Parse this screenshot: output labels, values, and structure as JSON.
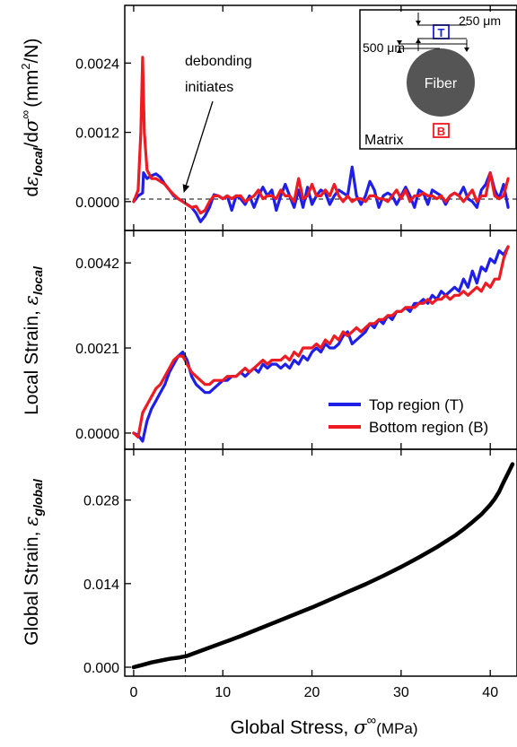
{
  "colors": {
    "top": "#1f1fe8",
    "bottom": "#ee1b22",
    "global": "#000000"
  },
  "x_axis": {
    "label_prefix": "Global Stress, ",
    "label_symbol": "σ",
    "label_superscript": "∞",
    "label_unit": "(MPa)",
    "range": [
      -1,
      43
    ],
    "ticks": [
      "0",
      "10",
      "20",
      "30",
      "40"
    ]
  },
  "annotation": {
    "line1": "debonding",
    "line2": "initiates",
    "onset_stress": 5.8
  },
  "inset": {
    "fiber_label": "Fiber",
    "matrix_label": "Matrix",
    "top_marker": "T",
    "bottom_marker": "B",
    "dim_top": "250 μm",
    "dim_left": "500 μm"
  },
  "legend": {
    "top": "Top region (T)",
    "bottom": "Bottom region (B)"
  },
  "chart_data": [
    {
      "type": "line",
      "ylabel_d": "d",
      "ylabel_eps": "ε",
      "ylabel_sub": "local",
      "ylabel_mid": "/d",
      "ylabel_sigma": "σ",
      "ylabel_inf": "∞",
      "ylabel_unit_open": "(mm",
      "ylabel_unit_sup": "2",
      "ylabel_unit_close": "/N)",
      "ylim": [
        -0.0005,
        0.0034
      ],
      "ytick_values": [
        0,
        0.0012,
        0.0024
      ],
      "ytick_labels": [
        "0.0000",
        "0.0012",
        "0.0024"
      ],
      "reference_line": 0,
      "series": [
        {
          "name": "Top region (T)",
          "color": "#1f1fe8",
          "x": [
            0,
            0.5,
            1.0,
            1.1,
            1.5,
            2.0,
            2.5,
            3.0,
            3.5,
            4.0,
            4.5,
            5.0,
            5.5,
            6.0,
            6.5,
            7.0,
            7.5,
            8.0,
            8.5,
            9.0,
            9.5,
            10,
            10.5,
            11,
            11.5,
            12,
            12.5,
            13,
            13.5,
            14,
            14.5,
            15,
            15.5,
            16,
            16.5,
            17,
            17.5,
            18,
            18.5,
            19,
            19.5,
            20,
            20.5,
            21,
            21.5,
            22,
            22.5,
            23,
            23.5,
            24,
            24.5,
            25,
            25.5,
            26,
            26.5,
            27,
            27.5,
            28,
            28.5,
            29,
            29.5,
            30,
            30.5,
            31,
            31.5,
            32,
            32.5,
            33,
            33.5,
            34,
            34.5,
            35,
            35.5,
            36,
            36.5,
            37,
            37.5,
            38,
            38.5,
            39,
            39.5,
            40,
            40.5,
            41,
            41.5,
            42
          ],
          "y": [
            0,
            0.0001,
            0.00015,
            0.0005,
            0.0004,
            0.00045,
            0.00048,
            0.00042,
            0.0003,
            0.0002,
            0.0001,
            5e-05,
            0,
            -5e-05,
            -0.0001,
            -0.0002,
            -0.00035,
            -0.00025,
            -0.0001,
            0.00012,
            0.0001,
            5e-05,
            0.0001,
            -0.00015,
            0.0001,
            5e-05,
            -5e-05,
            0.0001,
            -0.0001,
            0.0001,
            0.00025,
            0.0001,
            0.0002,
            -0.00015,
            0.0001,
            0.0003,
            0.0001,
            -0.0001,
            0.0002,
            -0.0001,
            0.00025,
            -5e-05,
            0.0001,
            0.0002,
            0.00015,
            -5e-05,
            0.0001,
            0.0002,
            0.00015,
            0.0001,
            0.0006,
            0.0001,
            -5e-05,
            0.0001,
            0.00035,
            0.0002,
            -0.0001,
            0.0001,
            0.00015,
            0.0001,
            -5e-05,
            0.0001,
            0.00025,
            0.0001,
            -0.0001,
            0.0002,
            0.00015,
            -5e-05,
            0.0002,
            0.00015,
            0.0001,
            -5e-05,
            0.0001,
            0.00015,
            0.0001,
            0.00025,
            5e-05,
            0,
            -0.0001,
            0.0002,
            0.0003,
            0.0005,
            0.0002,
            5e-05,
            0.0003,
            -0.0001
          ]
        },
        {
          "name": "Bottom region (B)",
          "color": "#ee1b22",
          "x": [
            0,
            0.5,
            0.8,
            1.0,
            1.2,
            1.5,
            2.0,
            2.5,
            3.0,
            3.5,
            4.0,
            4.5,
            5.0,
            5.5,
            6.0,
            6.5,
            7.0,
            7.5,
            8.0,
            8.5,
            9.0,
            9.5,
            10,
            10.5,
            11,
            11.5,
            12,
            12.5,
            13,
            13.5,
            14,
            14.5,
            15,
            15.5,
            16,
            16.5,
            17,
            17.5,
            18,
            18.5,
            19,
            19.5,
            20,
            20.5,
            21,
            21.5,
            22,
            22.5,
            23,
            23.5,
            24,
            24.5,
            25,
            25.5,
            26,
            26.5,
            27,
            27.5,
            28,
            28.5,
            29,
            29.5,
            30,
            30.5,
            31,
            31.5,
            32,
            32.5,
            33,
            33.5,
            34,
            34.5,
            35,
            35.5,
            36,
            36.5,
            37,
            37.5,
            38,
            38.5,
            39,
            39.5,
            40,
            40.5,
            41,
            41.5,
            42
          ],
          "y": [
            0,
            0.0002,
            0.0012,
            0.0025,
            0.0012,
            0.00055,
            0.0004,
            0.0004,
            0.00035,
            0.0003,
            0.0002,
            0.00012,
            5e-05,
            0,
            -5e-05,
            -0.0001,
            -8e-05,
            -0.0002,
            -0.00015,
            0,
            0.0001,
            0.0001,
            5e-05,
            0.0001,
            5e-05,
            0.0001,
            0.0001,
            0,
            5e-05,
            0.0001,
            0.0002,
            5e-05,
            0.0001,
            0.0001,
            5e-05,
            0.0002,
            0.0001,
            0.0001,
            0,
            0.0004,
            5e-05,
            0.0001,
            0.0003,
            0.0001,
            0.0001,
            0.0002,
            0.0001,
            0.0003,
            0.0001,
            0,
            0.0001,
            0,
            5e-05,
            5e-05,
            0,
            0.0001,
            0.0001,
            5e-05,
            5e-05,
            0,
            0.0001,
            0.0002,
            5e-05,
            0.0002,
            0,
            0.0001,
            0.0001,
            0.00015,
            0.0001,
            0.0001,
            5e-05,
            0.0001,
            0,
            0.0001,
            0.00015,
            0.0001,
            0,
            0.0001,
            0.0002,
            0,
            0.0001,
            0.0001,
            0.0005,
            0.0001,
            5e-05,
            0.0001,
            0.0004
          ]
        }
      ]
    },
    {
      "type": "line",
      "ylabel_text": "Local Strain, ",
      "ylabel_eps": "ε",
      "ylabel_sub": "local",
      "ylim": [
        -0.0004,
        0.005
      ],
      "ytick_values": [
        0,
        0.0021,
        0.0042
      ],
      "ytick_labels": [
        "0.0000",
        "0.0021",
        "0.0042"
      ],
      "series": [
        {
          "name": "Top region (T)",
          "color": "#1f1fe8",
          "x": [
            0,
            0.5,
            1,
            1.5,
            2,
            2.5,
            3,
            3.5,
            4,
            4.5,
            5,
            5.5,
            6,
            6.5,
            7,
            7.5,
            8,
            8.5,
            9,
            9.5,
            10,
            10.5,
            11,
            11.5,
            12,
            12.5,
            13,
            13.5,
            14,
            14.5,
            15,
            15.5,
            16,
            16.5,
            17,
            17.5,
            18,
            18.5,
            19,
            19.5,
            20,
            20.5,
            21,
            21.5,
            22,
            22.5,
            23,
            23.5,
            24,
            24.5,
            25,
            25.5,
            26,
            26.5,
            27,
            27.5,
            28,
            28.5,
            29,
            29.5,
            30,
            30.5,
            31,
            31.5,
            32,
            32.5,
            33,
            33.5,
            34,
            34.5,
            35,
            35.5,
            36,
            36.5,
            37,
            37.5,
            38,
            38.5,
            39,
            39.5,
            40,
            40.5,
            41,
            41.5,
            42
          ],
          "y": [
            0,
            -5e-05,
            -0.0002,
            0.0003,
            0.0006,
            0.0008,
            0.001,
            0.0012,
            0.0015,
            0.0017,
            0.0019,
            0.002,
            0.0018,
            0.0014,
            0.0012,
            0.0011,
            0.001,
            0.001,
            0.0011,
            0.0012,
            0.0013,
            0.0013,
            0.0014,
            0.0014,
            0.0015,
            0.0014,
            0.0015,
            0.0016,
            0.0015,
            0.0017,
            0.0016,
            0.0017,
            0.0017,
            0.0016,
            0.0017,
            0.0016,
            0.0018,
            0.0017,
            0.0019,
            0.0018,
            0.002,
            0.0021,
            0.002,
            0.0022,
            0.0021,
            0.0021,
            0.0022,
            0.0024,
            0.0025,
            0.0022,
            0.0023,
            0.0024,
            0.0025,
            0.0027,
            0.0026,
            0.0028,
            0.0027,
            0.0029,
            0.0028,
            0.003,
            0.003,
            0.0031,
            0.003,
            0.0032,
            0.0032,
            0.0033,
            0.0032,
            0.0034,
            0.0033,
            0.0035,
            0.0034,
            0.0035,
            0.0036,
            0.0035,
            0.0038,
            0.0036,
            0.004,
            0.0037,
            0.0041,
            0.004,
            0.0043,
            0.0042,
            0.0045,
            0.0044,
            0.0046
          ]
        },
        {
          "name": "Bottom region (B)",
          "color": "#ee1b22",
          "x": [
            0,
            0.5,
            1,
            1.5,
            2,
            2.5,
            3,
            3.5,
            4,
            4.5,
            5,
            5.5,
            6,
            6.5,
            7,
            7.5,
            8,
            8.5,
            9,
            9.5,
            10,
            10.5,
            11,
            11.5,
            12,
            12.5,
            13,
            13.5,
            14,
            14.5,
            15,
            15.5,
            16,
            16.5,
            17,
            17.5,
            18,
            18.5,
            19,
            19.5,
            20,
            20.5,
            21,
            21.5,
            22,
            22.5,
            23,
            23.5,
            24,
            24.5,
            25,
            25.5,
            26,
            26.5,
            27,
            27.5,
            28,
            28.5,
            29,
            29.5,
            30,
            30.5,
            31,
            31.5,
            32,
            32.5,
            33,
            33.5,
            34,
            34.5,
            35,
            35.5,
            36,
            36.5,
            37,
            37.5,
            38,
            38.5,
            39,
            39.5,
            40,
            40.5,
            41,
            41.5,
            42
          ],
          "y": [
            0,
            -0.0001,
            0.0005,
            0.0007,
            0.0009,
            0.0011,
            0.0012,
            0.0014,
            0.0016,
            0.0018,
            0.0019,
            0.0019,
            0.0017,
            0.0015,
            0.0014,
            0.0013,
            0.0012,
            0.0012,
            0.0013,
            0.0013,
            0.0013,
            0.0014,
            0.0014,
            0.0014,
            0.0015,
            0.0016,
            0.0015,
            0.0016,
            0.0017,
            0.0018,
            0.0017,
            0.0018,
            0.0018,
            0.0018,
            0.0019,
            0.0018,
            0.002,
            0.0019,
            0.0021,
            0.0021,
            0.0021,
            0.0022,
            0.0021,
            0.0023,
            0.0022,
            0.0024,
            0.0023,
            0.0025,
            0.0024,
            0.0025,
            0.0026,
            0.0025,
            0.0026,
            0.0027,
            0.0027,
            0.0028,
            0.0028,
            0.0029,
            0.0029,
            0.003,
            0.003,
            0.0031,
            0.0031,
            0.0031,
            0.0032,
            0.0032,
            0.0033,
            0.0032,
            0.0033,
            0.0033,
            0.0034,
            0.0033,
            0.0034,
            0.0034,
            0.0035,
            0.0034,
            0.0035,
            0.0036,
            0.0035,
            0.0037,
            0.0036,
            0.0038,
            0.0038,
            0.0043,
            0.0046
          ]
        }
      ]
    },
    {
      "type": "line",
      "ylabel_text": "Global Strain, ",
      "ylabel_eps": "ε",
      "ylabel_sub": "global",
      "ylim": [
        -0.0015,
        0.0365
      ],
      "ytick_values": [
        0,
        0.014,
        0.028
      ],
      "ytick_labels": [
        "0.000",
        "0.014",
        "0.028"
      ],
      "series": [
        {
          "name": "",
          "color": "#000000",
          "x": [
            0,
            0.5,
            1,
            2,
            3,
            4,
            5,
            6,
            8,
            10,
            12,
            14,
            16,
            18,
            20,
            22,
            24,
            26,
            28,
            30,
            32,
            34,
            36,
            37,
            38,
            39,
            40,
            40.5,
            41,
            41.5,
            42,
            42.5
          ],
          "y": [
            0,
            0.0002,
            0.0004,
            0.0008,
            0.0011,
            0.0014,
            0.0016,
            0.0019,
            0.003,
            0.0041,
            0.0052,
            0.0064,
            0.0076,
            0.0088,
            0.01,
            0.0113,
            0.0126,
            0.0139,
            0.0153,
            0.0168,
            0.0184,
            0.0201,
            0.022,
            0.0231,
            0.0243,
            0.0256,
            0.0272,
            0.0282,
            0.0294,
            0.031,
            0.0325,
            0.034
          ]
        }
      ]
    }
  ]
}
